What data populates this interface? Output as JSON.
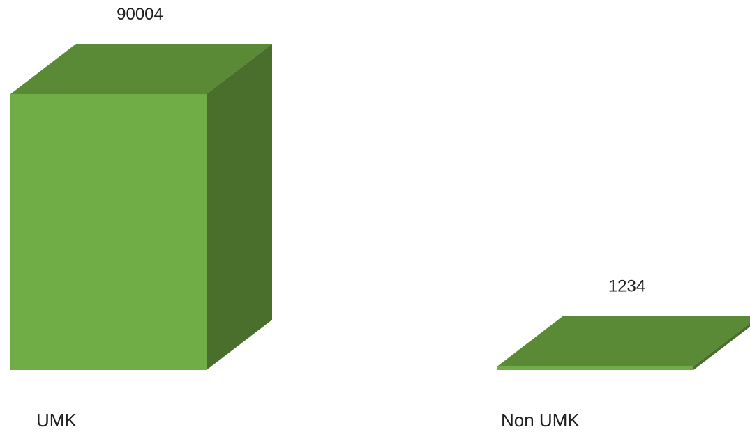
{
  "chart_data": {
    "type": "bar",
    "style": "3d-column",
    "categories": [
      "UMK",
      "Non UMK"
    ],
    "values": [
      90004,
      1234
    ],
    "data_labels": [
      "90004",
      "1234"
    ],
    "title": "",
    "xlabel": "",
    "ylabel": "",
    "ylim": [
      0,
      90004
    ],
    "grid": false,
    "legend": "none",
    "colors": {
      "front": "#70ad47",
      "top": "#5b8a37",
      "side": "#4a6f2c"
    }
  }
}
